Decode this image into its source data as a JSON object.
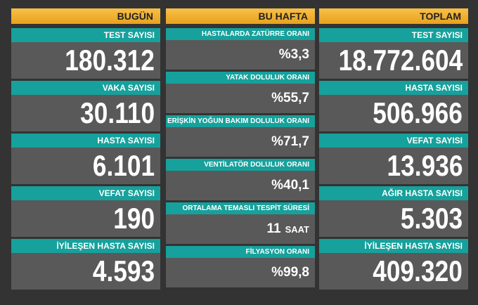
{
  "columns": [
    {
      "title": "BUGÜN",
      "items": [
        {
          "label": "TEST SAYISI",
          "value": "180.312"
        },
        {
          "label": "VAKA SAYISI",
          "value": "30.110"
        },
        {
          "label": "HASTA SAYISI",
          "value": "6.101"
        },
        {
          "label": "VEFAT SAYISI",
          "value": "190"
        },
        {
          "label": "İYİLEŞEN HASTA SAYISI",
          "value": "4.593"
        }
      ]
    },
    {
      "title": "BU HAFTA",
      "items": [
        {
          "label": "HASTALARDA ZATÜRRE ORANI",
          "value": "%3,3"
        },
        {
          "label": "YATAK DOLULUK ORANI",
          "value": "%55,7"
        },
        {
          "label": "ERİŞKİN YOĞUN BAKIM DOLULUK ORANI",
          "value": "%71,7"
        },
        {
          "label": "VENTİLATÖR DOLULUK ORANI",
          "value": "%40,1"
        },
        {
          "label": "ORTALAMA TEMASLI TESPİT SÜRESİ",
          "value": "11",
          "unit": "SAAT"
        },
        {
          "label": "FİLYASYON ORANI",
          "value": "%99,8"
        }
      ]
    },
    {
      "title": "TOPLAM",
      "items": [
        {
          "label": "TEST SAYISI",
          "value": "18.772.604"
        },
        {
          "label": "HASTA SAYISI",
          "value": "506.966"
        },
        {
          "label": "VEFAT SAYISI",
          "value": "13.936"
        },
        {
          "label": "AĞIR HASTA SAYISI",
          "value": "5.303"
        },
        {
          "label": "İYİLEŞEN HASTA SAYISI",
          "value": "409.320"
        }
      ]
    }
  ]
}
